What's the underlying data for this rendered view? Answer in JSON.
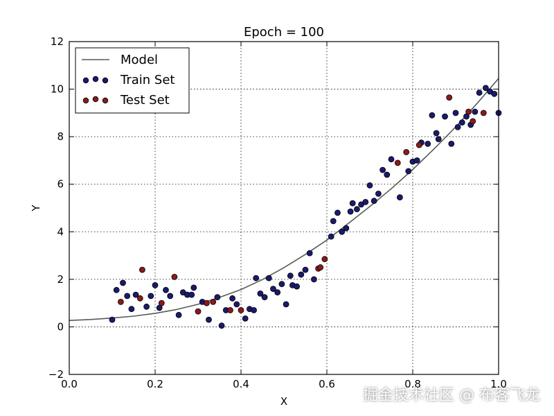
{
  "chart_data": {
    "type": "scatter",
    "title": "Epoch = 100",
    "xlabel": "X",
    "ylabel": "Y",
    "xlim": [
      0.0,
      1.0
    ],
    "ylim": [
      -2,
      12
    ],
    "xticks": [
      "0.0",
      "0.2",
      "0.4",
      "0.6",
      "0.8",
      "1.0"
    ],
    "yticks": [
      "−2",
      "0",
      "2",
      "4",
      "6",
      "8",
      "10",
      "12"
    ],
    "grid": true,
    "legend_position": "top-left",
    "series": [
      {
        "name": "Model",
        "type": "line",
        "color": "#555b55",
        "x": [
          0.0,
          0.05,
          0.1,
          0.15,
          0.2,
          0.25,
          0.3,
          0.35,
          0.4,
          0.45,
          0.5,
          0.55,
          0.6,
          0.65,
          0.7,
          0.75,
          0.8,
          0.85,
          0.9,
          0.95,
          1.0
        ],
        "y": [
          0.27,
          0.31,
          0.37,
          0.45,
          0.57,
          0.73,
          0.95,
          1.24,
          1.57,
          1.99,
          2.49,
          3.05,
          3.65,
          4.35,
          5.06,
          5.81,
          6.62,
          7.49,
          8.41,
          9.4,
          10.45
        ]
      },
      {
        "name": "Train Set",
        "type": "scatter",
        "color": "#1a1a6e",
        "x": [
          0.1,
          0.11,
          0.125,
          0.135,
          0.145,
          0.155,
          0.18,
          0.19,
          0.2,
          0.21,
          0.225,
          0.235,
          0.255,
          0.265,
          0.275,
          0.285,
          0.29,
          0.31,
          0.325,
          0.345,
          0.355,
          0.365,
          0.38,
          0.39,
          0.41,
          0.42,
          0.43,
          0.435,
          0.445,
          0.455,
          0.465,
          0.475,
          0.485,
          0.495,
          0.505,
          0.515,
          0.52,
          0.53,
          0.54,
          0.55,
          0.56,
          0.57,
          0.61,
          0.615,
          0.625,
          0.635,
          0.645,
          0.655,
          0.66,
          0.67,
          0.68,
          0.69,
          0.7,
          0.71,
          0.72,
          0.73,
          0.74,
          0.75,
          0.77,
          0.79,
          0.8,
          0.81,
          0.82,
          0.835,
          0.845,
          0.855,
          0.86,
          0.875,
          0.89,
          0.9,
          0.905,
          0.915,
          0.925,
          0.935,
          0.945,
          0.955,
          0.97,
          0.98,
          0.99,
          1.0
        ],
        "y": [
          0.3,
          1.55,
          1.85,
          1.3,
          0.75,
          1.35,
          0.85,
          1.3,
          1.75,
          0.8,
          1.55,
          1.3,
          0.5,
          1.45,
          1.35,
          1.35,
          1.65,
          1.05,
          0.3,
          1.25,
          0.05,
          0.7,
          1.2,
          0.95,
          0.35,
          0.75,
          0.7,
          2.05,
          1.4,
          1.25,
          2.05,
          1.6,
          1.45,
          1.8,
          0.95,
          2.15,
          1.75,
          1.7,
          2.2,
          2.4,
          3.1,
          2.0,
          3.8,
          4.45,
          4.8,
          4.0,
          4.15,
          4.85,
          5.2,
          4.95,
          5.15,
          5.25,
          5.95,
          5.3,
          5.6,
          6.6,
          6.4,
          7.05,
          5.45,
          6.55,
          6.95,
          7.0,
          7.75,
          7.7,
          8.9,
          8.15,
          7.9,
          8.85,
          7.7,
          9.0,
          8.4,
          8.6,
          8.85,
          8.5,
          9.05,
          9.85,
          10.05,
          9.9,
          9.8,
          9.0
        ]
      },
      {
        "name": "Test Set",
        "type": "scatter",
        "color": "#8b1a1a",
        "x": [
          0.12,
          0.165,
          0.17,
          0.215,
          0.245,
          0.3,
          0.32,
          0.335,
          0.375,
          0.4,
          0.58,
          0.585,
          0.595,
          0.765,
          0.785,
          0.815,
          0.885,
          0.93,
          0.94,
          0.965
        ],
        "y": [
          1.05,
          1.2,
          2.4,
          1.0,
          2.1,
          0.65,
          1.0,
          1.05,
          0.7,
          0.7,
          2.45,
          2.5,
          2.85,
          6.9,
          7.35,
          7.65,
          9.65,
          9.05,
          8.65,
          9.0
        ]
      }
    ]
  },
  "watermark": "掘金技术社区 @ 布客飞龙"
}
